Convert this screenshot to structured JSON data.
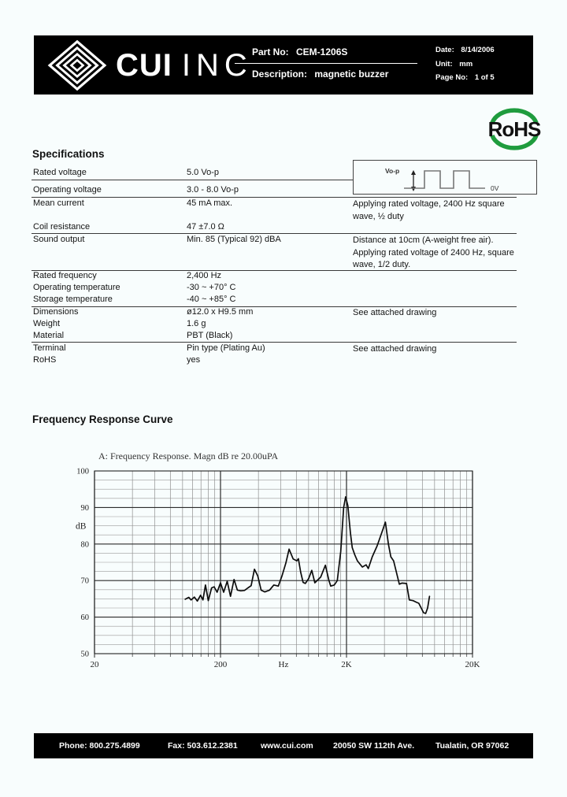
{
  "header": {
    "brand_cui": "CUI",
    "brand_inc": "INC",
    "part_no_label": "Part No:",
    "part_no": "CEM-1206S",
    "description_label": "Description:",
    "description": "magnetic buzzer",
    "date_label": "Date:",
    "date": "8/14/2006",
    "unit_label": "Unit:",
    "unit": "mm",
    "page_label": "Page No:",
    "page": "1 of 5"
  },
  "rohs": {
    "text": "RoHS",
    "green": "#1f9c3e"
  },
  "specifications": {
    "title": "Specifications",
    "rows": [
      {
        "label": "Rated voltage",
        "value": "5.0 Vo-p",
        "note": ""
      },
      {
        "label": "Operating voltage",
        "value": "3.0 - 8.0 Vo-p",
        "note": ""
      },
      {
        "label": "Mean current",
        "value": "45 mA max.",
        "note": "Applying rated voltage, 2400 Hz square wave, ½ duty"
      },
      {
        "label": "Coil resistance",
        "value": "47 ±7.0 Ω",
        "note": ""
      },
      {
        "label": "Sound output",
        "value": "Min. 85 (Typical 92) dBA",
        "note": "Distance at 10cm (A-weight free air). Applying rated voltage of 2400 Hz, square wave, 1/2 duty."
      },
      {
        "label": "Rated frequency",
        "value": "2,400 Hz",
        "note": ""
      },
      {
        "label": "Operating temperature",
        "value": "-30 ~ +70° C",
        "note": ""
      },
      {
        "label": "Storage temperature",
        "value": "-40 ~ +85° C",
        "note": ""
      },
      {
        "label": "Dimensions",
        "value": "ø12.0 x H9.5 mm",
        "note": "See attached drawing"
      },
      {
        "label": "Weight",
        "value": "1.6 g",
        "note": ""
      },
      {
        "label": "Material",
        "value": "PBT (Black)",
        "note": ""
      },
      {
        "label": "Terminal",
        "value": "Pin type (Plating Au)",
        "note": "See attached drawing"
      },
      {
        "label": "RoHS",
        "value": "yes",
        "note": ""
      }
    ]
  },
  "waveform": {
    "vop_label": "Vo-p",
    "zero_label": "0V"
  },
  "freq_section": {
    "title": "Frequency Response Curve"
  },
  "chart_data": {
    "type": "line",
    "title": "A: Frequency Response. Magn dB re 20.00uPA",
    "xlabel": "Hz",
    "ylabel": "dB",
    "x_scale": "log",
    "xlim": [
      20,
      20000
    ],
    "ylim": [
      50,
      100
    ],
    "grid": "on",
    "y_ticks": [
      50,
      60,
      70,
      80,
      90,
      100
    ],
    "y_minor_step": 2.5,
    "x_tick_labels": [
      {
        "value": 20,
        "label": "20"
      },
      {
        "value": 200,
        "label": "200"
      },
      {
        "value": 632,
        "label": "Hz"
      },
      {
        "value": 2000,
        "label": "2K"
      },
      {
        "value": 20000,
        "label": "20K"
      }
    ],
    "series": [
      {
        "name": "A: Frequency Response",
        "points": [
          [
            105,
            64.9
          ],
          [
            112,
            65.4
          ],
          [
            117,
            64.7
          ],
          [
            124,
            65.5
          ],
          [
            131,
            64.4
          ],
          [
            139,
            66.0
          ],
          [
            145,
            64.7
          ],
          [
            152,
            68.8
          ],
          [
            160,
            64.5
          ],
          [
            170,
            68.0
          ],
          [
            178,
            68.3
          ],
          [
            188,
            66.8
          ],
          [
            200,
            69.4
          ],
          [
            212,
            66.8
          ],
          [
            226,
            69.8
          ],
          [
            240,
            65.7
          ],
          [
            256,
            70.3
          ],
          [
            272,
            67.4
          ],
          [
            290,
            67.2
          ],
          [
            310,
            67.3
          ],
          [
            330,
            68.0
          ],
          [
            350,
            68.6
          ],
          [
            372,
            73.1
          ],
          [
            395,
            71.3
          ],
          [
            420,
            67.4
          ],
          [
            450,
            66.9
          ],
          [
            490,
            67.4
          ],
          [
            530,
            68.8
          ],
          [
            575,
            68.5
          ],
          [
            615,
            71.3
          ],
          [
            660,
            74.8
          ],
          [
            700,
            78.6
          ],
          [
            755,
            75.9
          ],
          [
            807,
            75.4
          ],
          [
            830,
            76.0
          ],
          [
            866,
            72.3
          ],
          [
            905,
            69.5
          ],
          [
            942,
            69.2
          ],
          [
            1000,
            70.5
          ],
          [
            1060,
            72.8
          ],
          [
            1122,
            69.4
          ],
          [
            1250,
            71.0
          ],
          [
            1360,
            74.2
          ],
          [
            1450,
            70.0
          ],
          [
            1500,
            68.5
          ],
          [
            1600,
            68.8
          ],
          [
            1690,
            70.0
          ],
          [
            1800,
            78.0
          ],
          [
            1900,
            90.0
          ],
          [
            1970,
            92.9
          ],
          [
            2050,
            90.5
          ],
          [
            2150,
            83.0
          ],
          [
            2220,
            79.0
          ],
          [
            2330,
            77.0
          ],
          [
            2440,
            75.4
          ],
          [
            2670,
            73.7
          ],
          [
            2860,
            74.3
          ],
          [
            2980,
            73.3
          ],
          [
            3200,
            76.5
          ],
          [
            3500,
            79.5
          ],
          [
            3800,
            83.0
          ],
          [
            4070,
            86.0
          ],
          [
            4300,
            80.0
          ],
          [
            4500,
            76.5
          ],
          [
            4730,
            75.4
          ],
          [
            5000,
            72.0
          ],
          [
            5250,
            69.0
          ],
          [
            5500,
            69.3
          ],
          [
            5990,
            69.2
          ],
          [
            6310,
            64.7
          ],
          [
            6760,
            64.5
          ],
          [
            7240,
            64.0
          ],
          [
            7500,
            63.8
          ],
          [
            8180,
            61.2
          ],
          [
            8500,
            61.0
          ],
          [
            8800,
            62.5
          ],
          [
            9120,
            65.7
          ]
        ]
      }
    ]
  },
  "footer": {
    "items": [
      "Phone:  800.275.4899",
      "Fax:  503.612.2381",
      "www.cui.com",
      "20050 SW 112th Ave.",
      "Tualatin, OR 97062"
    ]
  }
}
